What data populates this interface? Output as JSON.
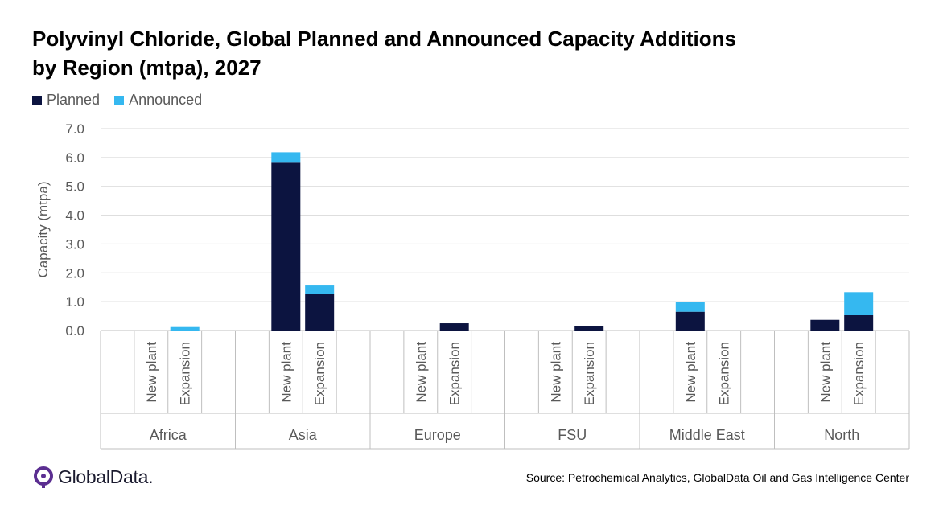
{
  "title_line1": "Polyvinyl Chloride, Global Planned and Announced Capacity Additions",
  "title_line2": "by Region (mtpa), 2027",
  "source": "Source:  Petrochemical Analytics, GlobalData Oil and Gas Intelligence Center",
  "logo_text": "GlobalData.",
  "colors": {
    "planned": "#0c1440",
    "announced": "#35b8f0",
    "grid": "#d9d9d9",
    "axis_text": "#595959"
  },
  "chart_data": {
    "type": "bar",
    "stacked": true,
    "title": "Polyvinyl Chloride, Global Planned and Announced Capacity Additions by Region (mtpa), 2027",
    "ylabel": "Capacity (mtpa)",
    "xlabel": "",
    "ylim": [
      0,
      7
    ],
    "yticks": [
      "0.0",
      "1.0",
      "2.0",
      "3.0",
      "4.0",
      "5.0",
      "6.0",
      "7.0"
    ],
    "grid": true,
    "legend": "top-left",
    "groups": [
      {
        "name": "Africa",
        "categories": [
          "New plant",
          "Expansion"
        ]
      },
      {
        "name": "Asia",
        "categories": [
          "New plant",
          "Expansion"
        ]
      },
      {
        "name": "Europe",
        "categories": [
          "New plant",
          "Expansion"
        ]
      },
      {
        "name": "FSU",
        "categories": [
          "New plant",
          "Expansion"
        ]
      },
      {
        "name": "Middle East",
        "categories": [
          "New plant",
          "Expansion"
        ]
      },
      {
        "name": "North",
        "categories": [
          "New plant",
          "Expansion"
        ]
      }
    ],
    "series": [
      {
        "name": "Planned",
        "values": [
          0,
          0,
          5.82,
          1.28,
          0,
          0.25,
          0,
          0.15,
          0.65,
          0,
          0.37,
          0.53
        ]
      },
      {
        "name": "Announced",
        "values": [
          0,
          0.12,
          0.36,
          0.28,
          0,
          0,
          0,
          0,
          0.35,
          0,
          0,
          0.8
        ]
      }
    ]
  }
}
